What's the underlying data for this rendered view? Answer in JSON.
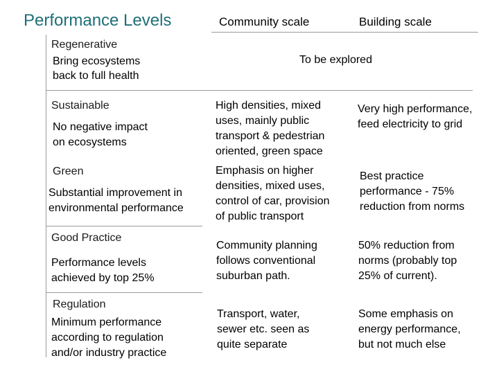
{
  "title": "Performance Levels",
  "columns": {
    "community": "Community scale",
    "building": "Building scale"
  },
  "levels": [
    {
      "name": "Regenerative",
      "desc1": "Bring ecosystems",
      "desc2": "back to full health",
      "merged": "To be explored"
    },
    {
      "name": "Sustainable",
      "desc1": "No negative impact",
      "desc2": "on ecosystems",
      "community": [
        "High densities, mixed",
        "uses, mainly public",
        "transport & pedestrian",
        "oriented, green space"
      ],
      "building": [
        "Very high performance,",
        "feed electricity to grid"
      ]
    },
    {
      "name": "Green",
      "desc1": "Substantial improvement in",
      "desc2": "environmental performance",
      "community": [
        "Emphasis on higher",
        "densities, mixed uses,",
        "control of car, provision",
        "of public transport"
      ],
      "building": [
        "Best practice",
        "performance - 75%",
        "reduction from norms"
      ]
    },
    {
      "name": "Good Practice",
      "desc1": "Performance levels",
      "desc2": "achieved by top 25%",
      "community": [
        "Community planning",
        "follows conventional",
        "suburban path."
      ],
      "building": [
        "50% reduction from",
        "norms (probably top",
        "25% of current)."
      ]
    },
    {
      "name": "Regulation",
      "desc1": "Minimum performance",
      "desc2": "according to regulation",
      "desc3": "and/or industry practice",
      "community": [
        "Transport, water,",
        "sewer etc. seen as",
        "quite separate"
      ],
      "building": [
        "Some emphasis on",
        "energy performance,",
        "but not much else"
      ]
    }
  ]
}
